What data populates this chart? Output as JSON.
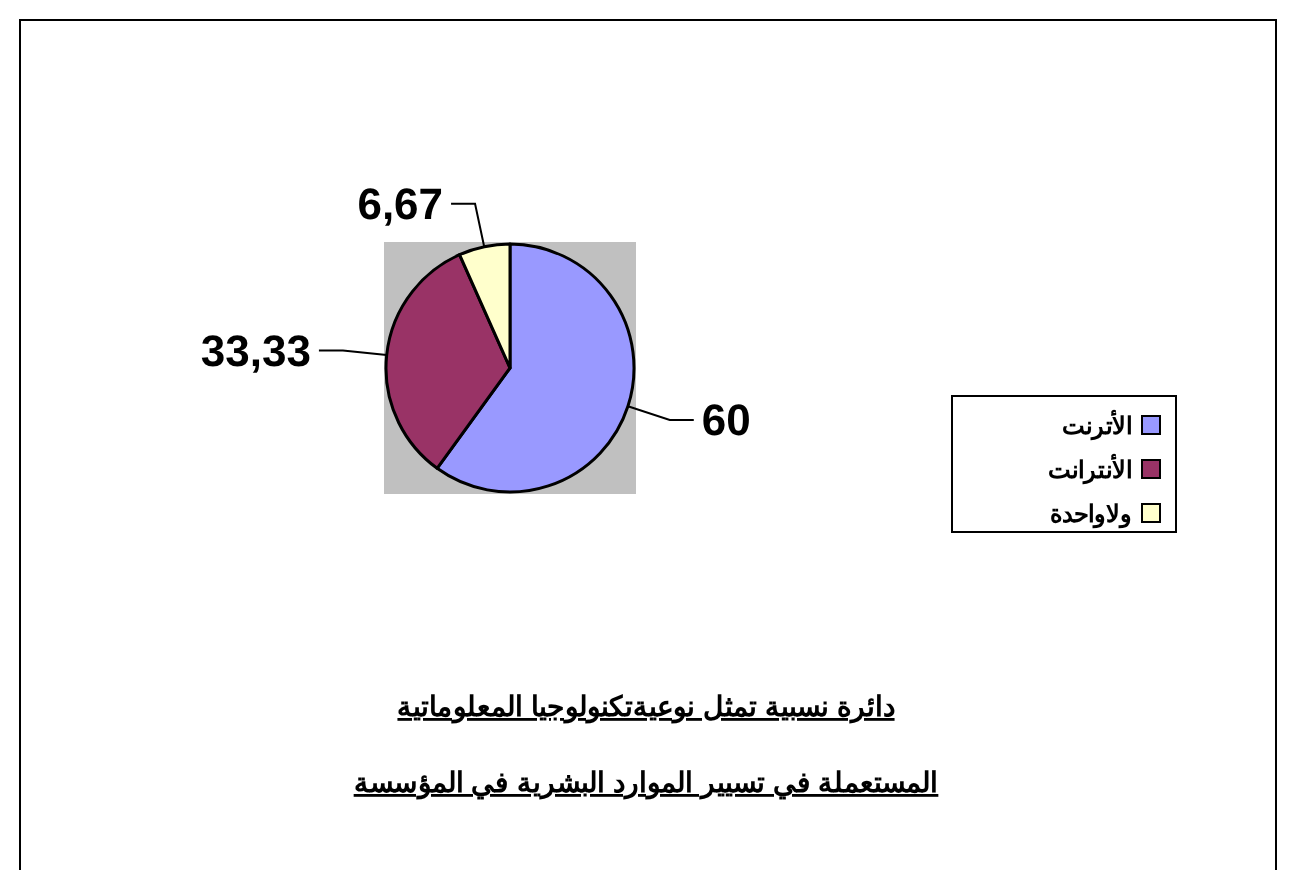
{
  "chart_data": {
    "type": "pie",
    "title": "دائرة نسبية تمثل نوعيةتكنولوجيا المعلوماتية",
    "subtitle": "المستعملة في تسيير الموارد البشرية في المؤسسة",
    "categories": [
      "الأترنت",
      "الأنترانت",
      "ولاواحدة"
    ],
    "values": [
      60,
      33.33,
      6.67
    ],
    "value_labels": [
      "60",
      "33,33",
      "6,67"
    ],
    "colors": [
      "#9999ff",
      "#993366",
      "#ffffcc"
    ],
    "legend": "right"
  }
}
